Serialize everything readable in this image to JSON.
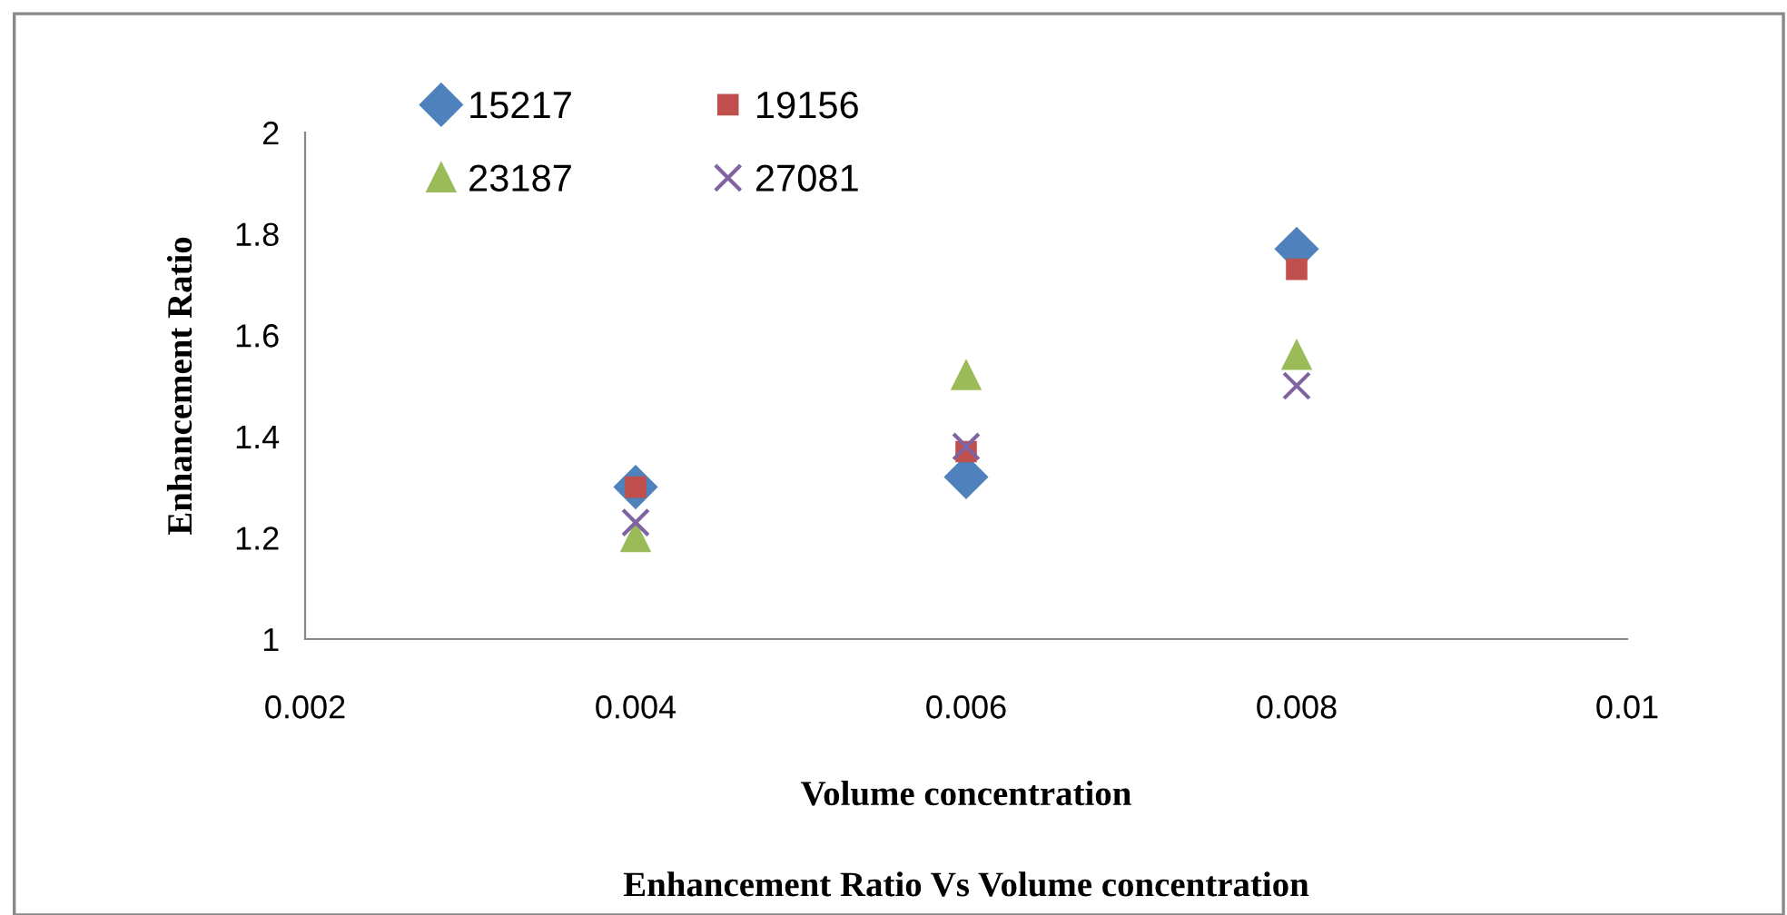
{
  "chart_data": {
    "type": "scatter",
    "title": "Enhancement Ratio Vs Volume concentration",
    "xlabel": "Volume concentration",
    "ylabel": "Enhancement Ratio",
    "x": [
      0.004,
      0.006,
      0.008
    ],
    "series": [
      {
        "name": "15217",
        "color": "#4f81bd",
        "marker": "diamond",
        "values": [
          1.3,
          1.32,
          1.77
        ]
      },
      {
        "name": "19156",
        "color": "#c0504d",
        "marker": "square",
        "values": [
          1.3,
          1.37,
          1.73
        ]
      },
      {
        "name": "23187",
        "color": "#9bbb59",
        "marker": "triangle",
        "values": [
          1.2,
          1.52,
          1.56
        ]
      },
      {
        "name": "27081",
        "color": "#8064a2",
        "marker": "cross",
        "values": [
          1.23,
          1.38,
          1.5
        ]
      }
    ],
    "xlim": [
      0.002,
      0.01
    ],
    "xticks": [
      0.002,
      0.004,
      0.006,
      0.008,
      0.01
    ],
    "ylim": [
      1,
      2
    ],
    "yticks": [
      1,
      1.2,
      1.4,
      1.6,
      1.8,
      2
    ],
    "grid": false,
    "legend": "top left"
  }
}
